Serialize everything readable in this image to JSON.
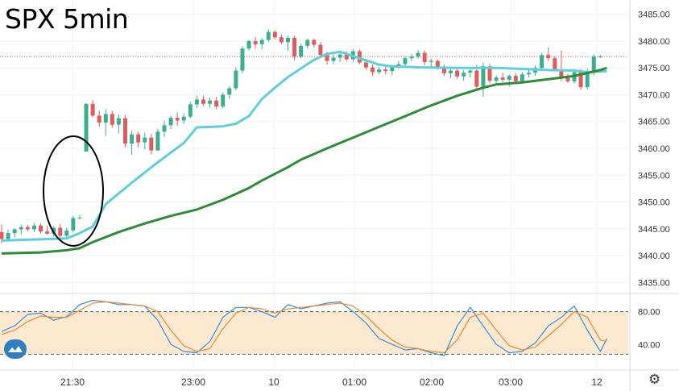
{
  "chart_data": {
    "type": "candlestick",
    "title": "SPX 5min",
    "x_tick_labels": [
      "21:30",
      "23:00",
      "10",
      "01:00",
      "02:00",
      "03:00",
      "12"
    ],
    "price_axis": {
      "ticks": [
        "3485.00",
        "3480.00",
        "3475.00",
        "3470.00",
        "3465.00",
        "3460.00",
        "3455.00",
        "3450.00",
        "3445.00",
        "3440.00",
        "3435.00"
      ],
      "ylim": [
        3434,
        3486
      ]
    },
    "oscillator_axis": {
      "ticks": [
        "80.00",
        "40.00"
      ],
      "band": [
        20,
        80
      ],
      "ylim": [
        0,
        100
      ]
    },
    "reference_line": 3477.1,
    "candles": [
      [
        3444.4,
        3445.8,
        3442.3,
        3443.1
      ],
      [
        3443.1,
        3444.8,
        3442.6,
        3444.2
      ],
      [
        3444.2,
        3445.1,
        3443.4,
        3444.9
      ],
      [
        3444.9,
        3445.8,
        3443.9,
        3445.3
      ],
      [
        3445.3,
        3445.7,
        3444.5,
        3444.9
      ],
      [
        3444.9,
        3446.1,
        3444.4,
        3445.6
      ],
      [
        3445.6,
        3446.0,
        3444.1,
        3444.5
      ],
      [
        3444.5,
        3445.6,
        3443.9,
        3444.1
      ],
      [
        3444.1,
        3445.5,
        3443.5,
        3445.2
      ],
      [
        3445.2,
        3445.9,
        3443.3,
        3443.7
      ],
      [
        3443.7,
        3445.2,
        3443.1,
        3444.7
      ],
      [
        3444.7,
        3447.4,
        3444.3,
        3447.0
      ],
      [
        3447.0,
        3447.5,
        3446.7,
        3447.1
      ],
      [
        3459.4,
        3468.4,
        3459.4,
        3468.3
      ],
      [
        3468.3,
        3469.0,
        3465.8,
        3466.1
      ],
      [
        3466.1,
        3467.0,
        3464.0,
        3464.8
      ],
      [
        3464.8,
        3467.3,
        3462.3,
        3466.4
      ],
      [
        3466.4,
        3467.0,
        3463.8,
        3464.4
      ],
      [
        3464.4,
        3466.3,
        3462.8,
        3465.6
      ],
      [
        3465.6,
        3466.2,
        3460.2,
        3460.9
      ],
      [
        3460.9,
        3463.3,
        3458.8,
        3462.6
      ],
      [
        3462.6,
        3463.1,
        3460.2,
        3461.1
      ],
      [
        3461.1,
        3462.9,
        3459.8,
        3462.0
      ],
      [
        3462.0,
        3462.7,
        3458.9,
        3459.6
      ],
      [
        3459.6,
        3463.7,
        3459.6,
        3463.1
      ],
      [
        3463.1,
        3465.2,
        3462.2,
        3464.3
      ],
      [
        3464.3,
        3466.1,
        3463.6,
        3465.7
      ],
      [
        3465.7,
        3466.7,
        3464.2,
        3465.2
      ],
      [
        3465.2,
        3466.5,
        3464.6,
        3465.9
      ],
      [
        3465.9,
        3468.7,
        3465.6,
        3468.2
      ],
      [
        3468.2,
        3469.8,
        3467.5,
        3469.1
      ],
      [
        3469.1,
        3469.8,
        3467.9,
        3468.3
      ],
      [
        3468.3,
        3469.4,
        3467.6,
        3468.9
      ],
      [
        3468.9,
        3469.6,
        3467.3,
        3467.8
      ],
      [
        3467.8,
        3470.4,
        3467.5,
        3470.0
      ],
      [
        3470.0,
        3471.6,
        3469.2,
        3471.2
      ],
      [
        3471.2,
        3475.1,
        3470.8,
        3474.5
      ],
      [
        3474.5,
        3479.0,
        3474.0,
        3478.6
      ],
      [
        3478.6,
        3480.2,
        3478.2,
        3480.0
      ],
      [
        3480.0,
        3480.8,
        3478.6,
        3479.4
      ],
      [
        3479.4,
        3480.6,
        3478.4,
        3480.2
      ],
      [
        3480.2,
        3482.2,
        3479.8,
        3481.7
      ],
      [
        3481.7,
        3482.0,
        3480.3,
        3480.7
      ],
      [
        3480.7,
        3481.2,
        3479.4,
        3479.8
      ],
      [
        3479.8,
        3481.0,
        3478.2,
        3480.6
      ],
      [
        3480.6,
        3481.0,
        3476.4,
        3477.1
      ],
      [
        3477.1,
        3479.5,
        3476.8,
        3479.1
      ],
      [
        3479.1,
        3480.5,
        3478.6,
        3480.2
      ],
      [
        3480.2,
        3480.5,
        3478.8,
        3479.3
      ],
      [
        3479.3,
        3479.8,
        3476.9,
        3477.4
      ],
      [
        3477.4,
        3478.0,
        3475.6,
        3476.3
      ],
      [
        3476.3,
        3477.5,
        3475.7,
        3476.9
      ],
      [
        3476.9,
        3477.8,
        3476.1,
        3477.5
      ],
      [
        3477.5,
        3478.1,
        3476.3,
        3476.6
      ],
      [
        3476.6,
        3478.5,
        3476.1,
        3478.1
      ],
      [
        3478.1,
        3478.4,
        3475.7,
        3476.0
      ],
      [
        3476.0,
        3476.7,
        3474.6,
        3475.1
      ],
      [
        3475.1,
        3475.6,
        3473.5,
        3474.2
      ],
      [
        3474.2,
        3475.2,
        3473.8,
        3474.7
      ],
      [
        3474.7,
        3475.4,
        3473.8,
        3474.4
      ],
      [
        3474.4,
        3475.6,
        3473.6,
        3475.3
      ],
      [
        3475.3,
        3476.3,
        3474.8,
        3475.7
      ],
      [
        3475.7,
        3477.2,
        3475.3,
        3476.8
      ],
      [
        3476.8,
        3477.6,
        3476.2,
        3477.1
      ],
      [
        3477.1,
        3478.3,
        3476.7,
        3477.8
      ],
      [
        3477.8,
        3478.2,
        3475.5,
        3476.1
      ],
      [
        3476.1,
        3476.7,
        3475.0,
        3476.3
      ],
      [
        3476.3,
        3476.6,
        3474.7,
        3475.1
      ],
      [
        3475.1,
        3475.6,
        3473.5,
        3474.0
      ],
      [
        3474.0,
        3474.8,
        3473.1,
        3474.5
      ],
      [
        3474.5,
        3475.0,
        3472.9,
        3473.4
      ],
      [
        3473.4,
        3474.6,
        3472.6,
        3474.1
      ],
      [
        3474.1,
        3475.1,
        3473.3,
        3474.5
      ],
      [
        3474.5,
        3475.6,
        3470.9,
        3471.5
      ],
      [
        3471.5,
        3476.0,
        3469.6,
        3475.3
      ],
      [
        3475.3,
        3475.8,
        3472.1,
        3472.6
      ],
      [
        3472.6,
        3473.6,
        3471.8,
        3473.2
      ],
      [
        3473.2,
        3474.1,
        3472.3,
        3472.8
      ],
      [
        3472.8,
        3473.8,
        3471.5,
        3473.5
      ],
      [
        3473.5,
        3474.0,
        3472.2,
        3472.5
      ],
      [
        3472.5,
        3474.2,
        3472.3,
        3473.8
      ],
      [
        3473.8,
        3474.7,
        3473.2,
        3474.1
      ],
      [
        3474.1,
        3475.4,
        3473.5,
        3475.0
      ],
      [
        3475.0,
        3477.8,
        3474.6,
        3477.4
      ],
      [
        3477.4,
        3478.8,
        3476.3,
        3476.8
      ],
      [
        3476.8,
        3477.2,
        3474.4,
        3474.7
      ],
      [
        3474.7,
        3478.2,
        3472.5,
        3473.1
      ],
      [
        3473.1,
        3473.9,
        3472.2,
        3472.5
      ],
      [
        3472.5,
        3474.8,
        3472.1,
        3474.2
      ],
      [
        3474.2,
        3474.8,
        3470.9,
        3471.4
      ],
      [
        3471.4,
        3474.9,
        3471.0,
        3474.1
      ],
      [
        3474.1,
        3477.5,
        3473.6,
        3477.1
      ],
      [
        3477.1,
        3477.4,
        3476.9,
        3477.1
      ]
    ],
    "series": [
      {
        "color": "#5fcfdc",
        "points": [
          [
            0,
            3442.8
          ],
          [
            10,
            3443.2
          ],
          [
            12,
            3444.2
          ],
          [
            14,
            3445.4
          ],
          [
            16,
            3449.6
          ],
          [
            20,
            3453.6
          ],
          [
            24,
            3457.4
          ],
          [
            28,
            3461.0
          ],
          [
            30,
            3463.9
          ],
          [
            34,
            3464.1
          ],
          [
            36,
            3464.6
          ],
          [
            38,
            3466.0
          ],
          [
            40,
            3469.2
          ],
          [
            42,
            3471.3
          ],
          [
            44,
            3473.3
          ],
          [
            46,
            3474.9
          ],
          [
            48,
            3476.5
          ],
          [
            50,
            3477.6
          ],
          [
            52,
            3478.0
          ],
          [
            54,
            3477.2
          ],
          [
            56,
            3476.4
          ],
          [
            58,
            3475.6
          ],
          [
            60,
            3475.3
          ],
          [
            64,
            3475.1
          ],
          [
            70,
            3475.0
          ],
          [
            74,
            3475.0
          ],
          [
            76,
            3475.0
          ],
          [
            80,
            3474.8
          ],
          [
            84,
            3474.6
          ],
          [
            88,
            3474.5
          ],
          [
            90,
            3474.2
          ],
          [
            93,
            3474.4
          ]
        ]
      },
      {
        "color": "#2e8b37",
        "points": [
          [
            0,
            3440.4
          ],
          [
            6,
            3440.6
          ],
          [
            10,
            3441.0
          ],
          [
            12,
            3441.4
          ],
          [
            14,
            3442.5
          ],
          [
            18,
            3444.4
          ],
          [
            22,
            3446.0
          ],
          [
            26,
            3447.4
          ],
          [
            30,
            3448.6
          ],
          [
            34,
            3450.4
          ],
          [
            38,
            3452.6
          ],
          [
            40,
            3454.0
          ],
          [
            44,
            3456.5
          ],
          [
            46,
            3457.9
          ],
          [
            50,
            3460.0
          ],
          [
            54,
            3462.0
          ],
          [
            58,
            3464.0
          ],
          [
            62,
            3466.0
          ],
          [
            66,
            3468.0
          ],
          [
            70,
            3469.8
          ],
          [
            74,
            3471.3
          ],
          [
            76,
            3471.9
          ],
          [
            80,
            3472.3
          ],
          [
            84,
            3472.9
          ],
          [
            88,
            3473.5
          ],
          [
            92,
            3474.6
          ],
          [
            93,
            3475.0
          ]
        ]
      }
    ],
    "oscillator": [
      {
        "color": "#2f8fe0",
        "points": [
          [
            0,
            52
          ],
          [
            2,
            60
          ],
          [
            4,
            76
          ],
          [
            6,
            78
          ],
          [
            8,
            68
          ],
          [
            10,
            73
          ],
          [
            12,
            90
          ],
          [
            14,
            96
          ],
          [
            16,
            94
          ],
          [
            18,
            90
          ],
          [
            20,
            90
          ],
          [
            22,
            88
          ],
          [
            24,
            68
          ],
          [
            26,
            34
          ],
          [
            28,
            24
          ],
          [
            30,
            22
          ],
          [
            32,
            38
          ],
          [
            34,
            72
          ],
          [
            36,
            86
          ],
          [
            38,
            86
          ],
          [
            40,
            80
          ],
          [
            42,
            72
          ],
          [
            44,
            90
          ],
          [
            46,
            84
          ],
          [
            48,
            88
          ],
          [
            50,
            92
          ],
          [
            52,
            94
          ],
          [
            54,
            80
          ],
          [
            56,
            64
          ],
          [
            58,
            42
          ],
          [
            60,
            34
          ],
          [
            62,
            26
          ],
          [
            64,
            28
          ],
          [
            66,
            22
          ],
          [
            68,
            18
          ],
          [
            70,
            60
          ],
          [
            72,
            86
          ],
          [
            74,
            60
          ],
          [
            76,
            34
          ],
          [
            78,
            22
          ],
          [
            80,
            24
          ],
          [
            82,
            36
          ],
          [
            84,
            60
          ],
          [
            86,
            72
          ],
          [
            88,
            88
          ],
          [
            90,
            54
          ],
          [
            92,
            24
          ],
          [
            93,
            42
          ]
        ]
      },
      {
        "color": "#f0882a",
        "points": [
          [
            0,
            48
          ],
          [
            2,
            54
          ],
          [
            4,
            66
          ],
          [
            6,
            74
          ],
          [
            8,
            72
          ],
          [
            10,
            72
          ],
          [
            12,
            82
          ],
          [
            14,
            92
          ],
          [
            16,
            94
          ],
          [
            18,
            92
          ],
          [
            20,
            90
          ],
          [
            22,
            88
          ],
          [
            24,
            80
          ],
          [
            26,
            54
          ],
          [
            28,
            32
          ],
          [
            30,
            24
          ],
          [
            32,
            28
          ],
          [
            34,
            56
          ],
          [
            36,
            78
          ],
          [
            38,
            86
          ],
          [
            40,
            84
          ],
          [
            42,
            78
          ],
          [
            44,
            84
          ],
          [
            46,
            86
          ],
          [
            48,
            88
          ],
          [
            50,
            90
          ],
          [
            52,
            92
          ],
          [
            54,
            88
          ],
          [
            56,
            74
          ],
          [
            58,
            56
          ],
          [
            60,
            40
          ],
          [
            62,
            30
          ],
          [
            64,
            28
          ],
          [
            66,
            24
          ],
          [
            68,
            22
          ],
          [
            70,
            40
          ],
          [
            72,
            72
          ],
          [
            74,
            78
          ],
          [
            76,
            54
          ],
          [
            78,
            32
          ],
          [
            80,
            26
          ],
          [
            82,
            30
          ],
          [
            84,
            46
          ],
          [
            86,
            62
          ],
          [
            88,
            80
          ],
          [
            90,
            72
          ],
          [
            92,
            40
          ],
          [
            93,
            38
          ]
        ]
      }
    ]
  },
  "colors": {
    "up": "#3bae91",
    "down": "#e05b5b",
    "band": "#fde9cf",
    "grid": "#eef0f3"
  },
  "icons": {
    "logo": "tradingview-logo-icon",
    "settings": "gear-icon"
  },
  "settings_glyph": "⚙"
}
